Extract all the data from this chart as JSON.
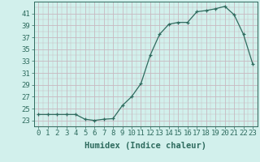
{
  "x": [
    0,
    1,
    2,
    3,
    4,
    5,
    6,
    7,
    8,
    9,
    10,
    11,
    12,
    13,
    14,
    15,
    16,
    17,
    18,
    19,
    20,
    21,
    22,
    23
  ],
  "y": [
    24.0,
    24.0,
    24.0,
    24.0,
    24.0,
    23.2,
    23.0,
    23.2,
    23.3,
    25.5,
    27.0,
    29.2,
    34.0,
    37.5,
    39.2,
    39.5,
    39.5,
    41.3,
    41.5,
    41.8,
    42.2,
    40.8,
    37.5,
    32.5
  ],
  "line_color": "#2e6b5e",
  "bg_color": "#d2f0ec",
  "grid_color": "#c8b8c0",
  "xlabel": "Humidex (Indice chaleur)",
  "ylim": [
    22.0,
    43.0
  ],
  "yticks": [
    23,
    25,
    27,
    29,
    31,
    33,
    35,
    37,
    39,
    41
  ],
  "xlim": [
    -0.5,
    23.5
  ],
  "xticks": [
    0,
    1,
    2,
    3,
    4,
    5,
    6,
    7,
    8,
    9,
    10,
    11,
    12,
    13,
    14,
    15,
    16,
    17,
    18,
    19,
    20,
    21,
    22,
    23
  ],
  "label_fontsize": 7.5,
  "tick_fontsize": 6.5
}
